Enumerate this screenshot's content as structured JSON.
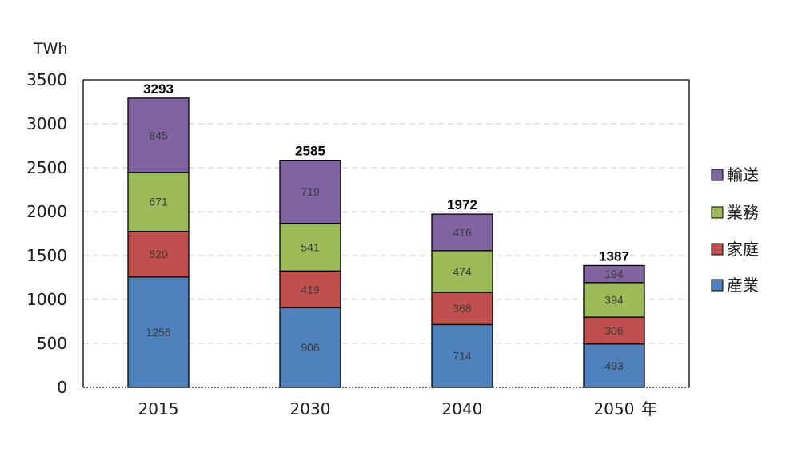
{
  "chart_data": {
    "type": "bar",
    "stacked": true,
    "ylabel": "TWh",
    "xunit": "年",
    "categories": [
      "2015",
      "2030",
      "2040",
      "2050"
    ],
    "series": [
      {
        "name": "産業",
        "color": "#4f81bd",
        "values": [
          1256,
          906,
          714,
          493
        ]
      },
      {
        "name": "家庭",
        "color": "#c0504d",
        "values": [
          520,
          419,
          368,
          306
        ]
      },
      {
        "name": "業務",
        "color": "#9bbb59",
        "values": [
          671,
          541,
          474,
          394
        ]
      },
      {
        "name": "輸送",
        "color": "#8064a2",
        "values": [
          845,
          719,
          416,
          194
        ]
      }
    ],
    "totals": [
      3293,
      2585,
      1972,
      1387
    ],
    "ylim": [
      0,
      3500
    ],
    "yticks": [
      0,
      500,
      1000,
      1500,
      2000,
      2500,
      3000,
      3500
    ],
    "grid": true,
    "legend_position": "right",
    "legend_order": [
      "輸送",
      "業務",
      "家庭",
      "産業"
    ]
  }
}
